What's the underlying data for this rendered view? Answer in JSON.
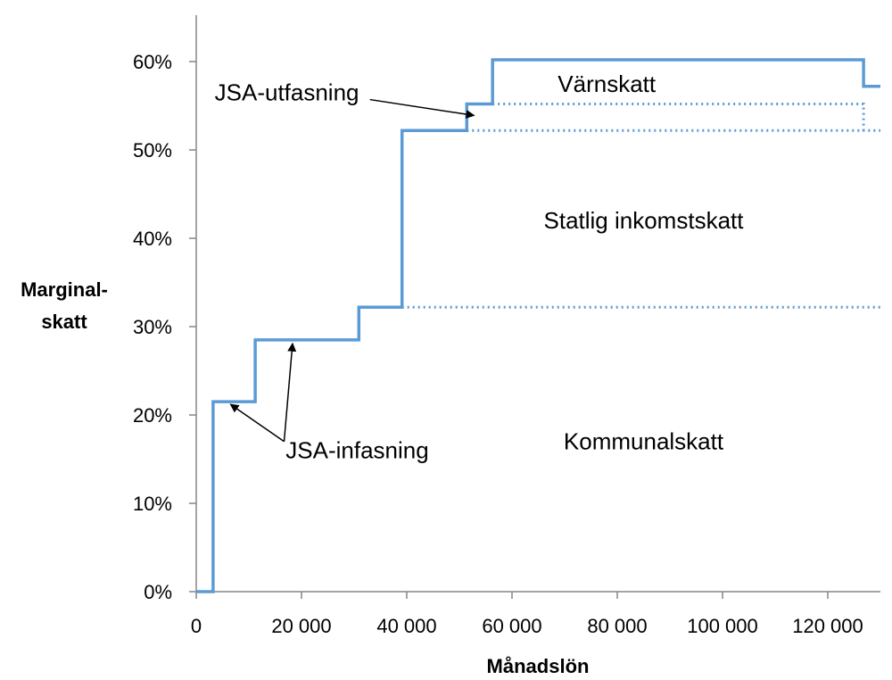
{
  "chart_data": {
    "type": "line",
    "xlabel": "Månadslön",
    "ylabel_lines": [
      "Marginal-",
      "skatt"
    ],
    "xlim": [
      0,
      130000
    ],
    "ylim": [
      0,
      0.6
    ],
    "x_ticks": [
      {
        "value": 0,
        "label": "0"
      },
      {
        "value": 20000,
        "label": "20 000"
      },
      {
        "value": 40000,
        "label": "40 000"
      },
      {
        "value": 60000,
        "label": "60 000"
      },
      {
        "value": 80000,
        "label": "80 000"
      },
      {
        "value": 100000,
        "label": "100 000"
      },
      {
        "value": 120000,
        "label": "120 000"
      }
    ],
    "y_ticks": [
      {
        "value": 0,
        "label": "0%"
      },
      {
        "value": 0.1,
        "label": "10%"
      },
      {
        "value": 0.2,
        "label": "20%"
      },
      {
        "value": 0.3,
        "label": "30%"
      },
      {
        "value": 0.4,
        "label": "40%"
      },
      {
        "value": 0.5,
        "label": "50%"
      },
      {
        "value": 0.6,
        "label": "60%"
      }
    ],
    "series": [
      {
        "style": "solid",
        "points": [
          [
            0,
            0
          ],
          [
            3200,
            0
          ],
          [
            3200,
            0.215
          ],
          [
            11200,
            0.215
          ],
          [
            11200,
            0.285
          ],
          [
            30900,
            0.285
          ],
          [
            30900,
            0.322
          ],
          [
            39100,
            0.322
          ],
          [
            39100,
            0.522
          ],
          [
            51400,
            0.522
          ],
          [
            51400,
            0.552
          ],
          [
            56300,
            0.552
          ],
          [
            56300,
            0.602
          ],
          [
            126800,
            0.602
          ],
          [
            126800,
            0.572
          ],
          [
            130000,
            0.572
          ]
        ]
      },
      {
        "style": "dotted",
        "points": [
          [
            39100,
            0.322
          ],
          [
            130000,
            0.322
          ]
        ]
      },
      {
        "style": "dotted",
        "points": [
          [
            51400,
            0.522
          ],
          [
            130000,
            0.522
          ]
        ]
      },
      {
        "style": "dotted",
        "points": [
          [
            56300,
            0.552
          ],
          [
            126800,
            0.552
          ],
          [
            126800,
            0.522
          ]
        ]
      }
    ],
    "region_labels": [
      {
        "text": "Värnskatt",
        "x": 78000,
        "y": 0.575
      },
      {
        "text": "Statlig inkomstskatt",
        "x": 85000,
        "y": 0.42
      },
      {
        "text": "Kommunalskatt",
        "x": 85000,
        "y": 0.17
      }
    ],
    "annotations": [
      {
        "text": "JSA-utfasning",
        "x": 3500,
        "y": 0.565,
        "arrows": [
          {
            "from": [
              33000,
              0.557
            ],
            "to": [
              52800,
              0.539
            ]
          }
        ]
      },
      {
        "text": "JSA-infasning",
        "x": 17000,
        "y": 0.16,
        "arrows": [
          {
            "from": [
              16700,
              0.17
            ],
            "to": [
              6500,
              0.212
            ]
          },
          {
            "from": [
              16700,
              0.17
            ],
            "to": [
              18300,
              0.281
            ]
          }
        ]
      }
    ],
    "color": "#5b9bd5",
    "grid": false,
    "legend": "none"
  }
}
